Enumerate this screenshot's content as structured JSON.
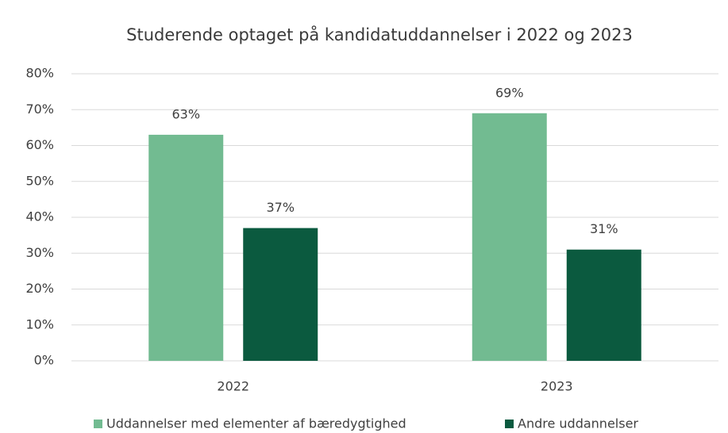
{
  "chart_data": {
    "type": "bar",
    "title": "Studerende optaget på kandidatuddannelser i 2022 og 2023",
    "categories": [
      "2022",
      "2023"
    ],
    "series": [
      {
        "name": "Uddannelser med elementer af bæredygtighed",
        "color": "#72bb91",
        "values": [
          63,
          69
        ],
        "value_labels": [
          "63%",
          "69%"
        ]
      },
      {
        "name": "Andre uddannelser",
        "color": "#0b5a3f",
        "values": [
          37,
          31
        ],
        "value_labels": [
          "37%",
          "31%"
        ]
      }
    ],
    "ylim": [
      0,
      80
    ],
    "yticks": [
      {
        "value": 0,
        "label": "0%"
      },
      {
        "value": 10,
        "label": "10%"
      },
      {
        "value": 20,
        "label": "20%"
      },
      {
        "value": 30,
        "label": "30%"
      },
      {
        "value": 40,
        "label": "40%"
      },
      {
        "value": 50,
        "label": "50%"
      },
      {
        "value": 60,
        "label": "60%"
      },
      {
        "value": 70,
        "label": "70%"
      },
      {
        "value": 80,
        "label": "80%"
      }
    ],
    "grid": true,
    "legend": "bottom"
  }
}
